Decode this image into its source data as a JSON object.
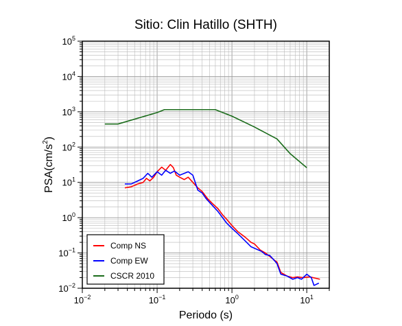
{
  "chart_data": {
    "type": "line",
    "title": "Sitio: Clin Hatillo (SHTH)",
    "xlabel": "Periodo (s)",
    "ylabel": {
      "prefix": "PSA(cm/s",
      "sup": "2",
      "suffix": ")"
    },
    "x_scale": "log",
    "y_scale": "log",
    "xlim": [
      0.01,
      20
    ],
    "ylim": [
      0.01,
      100000
    ],
    "x_ticks": [
      {
        "value": 0.01,
        "base": "10",
        "exp": "−2"
      },
      {
        "value": 0.1,
        "base": "10",
        "exp": "−1"
      },
      {
        "value": 1,
        "base": "10",
        "exp": "0"
      },
      {
        "value": 10,
        "base": "10",
        "exp": "1"
      }
    ],
    "y_ticks": [
      {
        "value": 0.01,
        "base": "10",
        "exp": "−2"
      },
      {
        "value": 0.1,
        "base": "10",
        "exp": "−1"
      },
      {
        "value": 1,
        "base": "10",
        "exp": "0"
      },
      {
        "value": 10,
        "base": "10",
        "exp": "1"
      },
      {
        "value": 100,
        "base": "10",
        "exp": "2"
      },
      {
        "value": 1000,
        "base": "10",
        "exp": "3"
      },
      {
        "value": 10000,
        "base": "10",
        "exp": "4"
      },
      {
        "value": 100000,
        "base": "10",
        "exp": "5"
      }
    ],
    "grid": true,
    "legend_position": "bottom-left",
    "series": [
      {
        "name": "Comp NS",
        "color": "#ff0000",
        "points": [
          [
            0.037,
            7
          ],
          [
            0.045,
            7.5
          ],
          [
            0.055,
            9
          ],
          [
            0.065,
            10
          ],
          [
            0.072,
            13
          ],
          [
            0.08,
            11
          ],
          [
            0.09,
            14
          ],
          [
            0.1,
            20
          ],
          [
            0.115,
            27
          ],
          [
            0.13,
            22
          ],
          [
            0.15,
            32
          ],
          [
            0.165,
            26
          ],
          [
            0.18,
            16
          ],
          [
            0.2,
            14
          ],
          [
            0.23,
            12
          ],
          [
            0.26,
            14
          ],
          [
            0.3,
            10
          ],
          [
            0.35,
            7
          ],
          [
            0.4,
            5.5
          ],
          [
            0.47,
            3.5
          ],
          [
            0.55,
            2.5
          ],
          [
            0.65,
            1.8
          ],
          [
            0.75,
            1.2
          ],
          [
            0.85,
            0.9
          ],
          [
            1.0,
            0.6
          ],
          [
            1.2,
            0.4
          ],
          [
            1.5,
            0.28
          ],
          [
            1.8,
            0.2
          ],
          [
            2.0,
            0.18
          ],
          [
            2.4,
            0.12
          ],
          [
            2.8,
            0.1
          ],
          [
            3.2,
            0.08
          ],
          [
            3.6,
            0.065
          ],
          [
            4.0,
            0.055
          ],
          [
            4.5,
            0.028
          ],
          [
            5.5,
            0.022
          ],
          [
            6.5,
            0.02
          ],
          [
            7.5,
            0.021
          ],
          [
            9.0,
            0.02
          ],
          [
            11,
            0.021
          ],
          [
            15,
            0.018
          ]
        ]
      },
      {
        "name": "Comp EW",
        "color": "#0000ff",
        "points": [
          [
            0.037,
            9
          ],
          [
            0.045,
            9
          ],
          [
            0.055,
            11
          ],
          [
            0.065,
            13
          ],
          [
            0.075,
            18
          ],
          [
            0.085,
            14
          ],
          [
            0.1,
            20
          ],
          [
            0.115,
            16
          ],
          [
            0.13,
            22
          ],
          [
            0.15,
            18
          ],
          [
            0.17,
            21
          ],
          [
            0.2,
            16
          ],
          [
            0.23,
            18
          ],
          [
            0.26,
            20
          ],
          [
            0.3,
            16
          ],
          [
            0.35,
            6
          ],
          [
            0.4,
            5
          ],
          [
            0.45,
            3.5
          ],
          [
            0.55,
            2.2
          ],
          [
            0.65,
            1.5
          ],
          [
            0.75,
            1.0
          ],
          [
            0.85,
            0.7
          ],
          [
            1.0,
            0.5
          ],
          [
            1.2,
            0.35
          ],
          [
            1.5,
            0.22
          ],
          [
            1.8,
            0.15
          ],
          [
            2.1,
            0.13
          ],
          [
            2.5,
            0.11
          ],
          [
            2.8,
            0.09
          ],
          [
            3.2,
            0.085
          ],
          [
            3.6,
            0.065
          ],
          [
            4.0,
            0.05
          ],
          [
            4.5,
            0.025
          ],
          [
            5.5,
            0.022
          ],
          [
            6.5,
            0.018
          ],
          [
            7.5,
            0.02
          ],
          [
            8.5,
            0.018
          ],
          [
            10,
            0.025
          ],
          [
            11.5,
            0.02
          ],
          [
            12.5,
            0.012
          ],
          [
            14.5,
            0.014
          ]
        ]
      },
      {
        "name": "CSCR 2010",
        "color": "#1a6b1a",
        "points": [
          [
            0.02,
            450
          ],
          [
            0.03,
            450
          ],
          [
            0.1,
            950
          ],
          [
            0.125,
            1150
          ],
          [
            0.6,
            1150
          ],
          [
            1.0,
            750
          ],
          [
            2.0,
            370
          ],
          [
            4.0,
            170
          ],
          [
            6.0,
            65
          ],
          [
            10.0,
            26
          ]
        ]
      }
    ]
  }
}
